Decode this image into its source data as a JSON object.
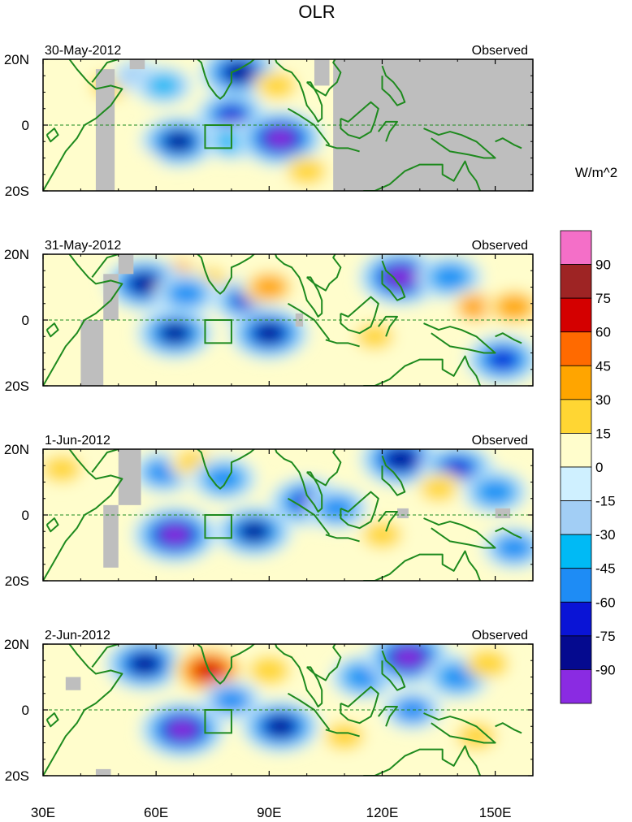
{
  "chart_data": {
    "type": "heatmap",
    "title": "OLR",
    "units_label": "W/m^2",
    "x_ticks": [
      "30E",
      "60E",
      "90E",
      "120E",
      "150E"
    ],
    "x_tick_values": [
      30,
      60,
      90,
      120,
      150
    ],
    "y_ticks": [
      "20N",
      "0",
      "20S"
    ],
    "y_tick_values": [
      20,
      0,
      -20
    ],
    "lon_range": [
      30,
      160
    ],
    "lat_range": [
      -20,
      20
    ],
    "missing_color": "#bebebe",
    "coast_color": "#1e8a1e",
    "colorbar": {
      "labels": [
        "90",
        "75",
        "60",
        "45",
        "30",
        "15",
        "0",
        "-15",
        "-30",
        "-45",
        "-60",
        "-75",
        "-90"
      ],
      "levels": [
        90,
        75,
        60,
        45,
        30,
        15,
        0,
        -15,
        -30,
        -45,
        -60,
        -75,
        -90
      ],
      "colors": [
        "#f46fc8",
        "#9e2424",
        "#d40000",
        "#ff6a00",
        "#ffa500",
        "#ffd633",
        "#fffdcc",
        "#cff0ff",
        "#a2cef5",
        "#00baf5",
        "#1e8cf5",
        "#0a14d6",
        "#050a8f",
        "#8a2be2"
      ]
    },
    "panels": [
      {
        "date": "30-May-2012",
        "tag": "Observed",
        "anomalies": [
          {
            "lon": 48,
            "lat": 12,
            "value": 25
          },
          {
            "lon": 55,
            "lat": 15,
            "value": -30
          },
          {
            "lon": 62,
            "lat": 12,
            "value": -45
          },
          {
            "lon": 82,
            "lat": 16,
            "value": -85
          },
          {
            "lon": 92,
            "lat": 12,
            "value": 25
          },
          {
            "lon": 80,
            "lat": 3,
            "value": -70
          },
          {
            "lon": 66,
            "lat": -5,
            "value": -80
          },
          {
            "lon": 80,
            "lat": -5,
            "value": -40
          },
          {
            "lon": 93,
            "lat": -4,
            "value": -95
          },
          {
            "lon": 55,
            "lat": -12,
            "value": 10
          },
          {
            "lon": 100,
            "lat": -14,
            "value": 25
          }
        ],
        "missing": [
          {
            "lon_start": 44,
            "lon_end": 49,
            "lat_start": -20,
            "lat_end": 17
          },
          {
            "lon_start": 53,
            "lon_end": 57,
            "lat_start": 17,
            "lat_end": 20
          },
          {
            "lon_start": 102,
            "lon_end": 106,
            "lat_start": 12,
            "lat_end": 20
          },
          {
            "lon_start": 107,
            "lon_end": 160,
            "lat_start": -20,
            "lat_end": 20
          }
        ]
      },
      {
        "date": "31-May-2012",
        "tag": "Observed",
        "anomalies": [
          {
            "lon": 66,
            "lat": 14,
            "value": 35
          },
          {
            "lon": 74,
            "lat": 12,
            "value": 30
          },
          {
            "lon": 57,
            "lat": 11,
            "value": -85
          },
          {
            "lon": 68,
            "lat": 8,
            "value": -55
          },
          {
            "lon": 84,
            "lat": 6,
            "value": -65
          },
          {
            "lon": 90,
            "lat": 10,
            "value": 40
          },
          {
            "lon": 65,
            "lat": -4,
            "value": -80
          },
          {
            "lon": 90,
            "lat": -4,
            "value": -85
          },
          {
            "lon": 125,
            "lat": 13,
            "value": -95
          },
          {
            "lon": 138,
            "lat": 13,
            "value": -60
          },
          {
            "lon": 145,
            "lat": 4,
            "value": 35
          },
          {
            "lon": 155,
            "lat": 4,
            "value": 45
          },
          {
            "lon": 152,
            "lat": -12,
            "value": -75
          },
          {
            "lon": 118,
            "lat": -5,
            "value": 30
          }
        ],
        "missing": [
          {
            "lon_start": 40,
            "lon_end": 46,
            "lat_start": -20,
            "lat_end": 0
          },
          {
            "lon_start": 46,
            "lon_end": 50,
            "lat_start": 0,
            "lat_end": 14
          },
          {
            "lon_start": 50,
            "lon_end": 54,
            "lat_start": 14,
            "lat_end": 20
          },
          {
            "lon_start": 97,
            "lon_end": 99,
            "lat_start": -2,
            "lat_end": 2
          }
        ]
      },
      {
        "date": "1-Jun-2012",
        "tag": "Observed",
        "anomalies": [
          {
            "lon": 35,
            "lat": 14,
            "value": 25
          },
          {
            "lon": 62,
            "lat": 13,
            "value": -55
          },
          {
            "lon": 70,
            "lat": 16,
            "value": 30
          },
          {
            "lon": 78,
            "lat": 11,
            "value": -60
          },
          {
            "lon": 65,
            "lat": -6,
            "value": -95
          },
          {
            "lon": 86,
            "lat": -5,
            "value": -80
          },
          {
            "lon": 100,
            "lat": 4,
            "value": -75
          },
          {
            "lon": 108,
            "lat": 2,
            "value": -55
          },
          {
            "lon": 125,
            "lat": 17,
            "value": -90
          },
          {
            "lon": 140,
            "lat": 14,
            "value": -75
          },
          {
            "lon": 135,
            "lat": 8,
            "value": 30
          },
          {
            "lon": 150,
            "lat": 7,
            "value": -60
          },
          {
            "lon": 120,
            "lat": -6,
            "value": 25
          },
          {
            "lon": 155,
            "lat": -10,
            "value": -55
          }
        ],
        "missing": [
          {
            "lon_start": 46,
            "lon_end": 50,
            "lat_start": -16,
            "lat_end": 3
          },
          {
            "lon_start": 50,
            "lon_end": 56,
            "lat_start": 3,
            "lat_end": 20
          },
          {
            "lon_start": 124,
            "lon_end": 127,
            "lat_start": -1,
            "lat_end": 2
          },
          {
            "lon_start": 150,
            "lon_end": 154,
            "lat_start": -1,
            "lat_end": 2
          }
        ]
      },
      {
        "date": "2-Jun-2012",
        "tag": "Observed",
        "anomalies": [
          {
            "lon": 57,
            "lat": 14,
            "value": -85
          },
          {
            "lon": 75,
            "lat": 14,
            "value": 50
          },
          {
            "lon": 74,
            "lat": 12,
            "value": 75
          },
          {
            "lon": 90,
            "lat": 12,
            "value": 20
          },
          {
            "lon": 67,
            "lat": -6,
            "value": -95
          },
          {
            "lon": 80,
            "lat": 3,
            "value": -50
          },
          {
            "lon": 93,
            "lat": -5,
            "value": -85
          },
          {
            "lon": 115,
            "lat": 10,
            "value": -60
          },
          {
            "lon": 127,
            "lat": 16,
            "value": -95
          },
          {
            "lon": 140,
            "lat": 10,
            "value": -60
          },
          {
            "lon": 148,
            "lat": 14,
            "value": 20
          },
          {
            "lon": 128,
            "lat": 0,
            "value": -50
          },
          {
            "lon": 145,
            "lat": -8,
            "value": 25
          },
          {
            "lon": 110,
            "lat": -8,
            "value": 25
          }
        ],
        "missing": [
          {
            "lon_start": 36,
            "lon_end": 40,
            "lat_start": 6,
            "lat_end": 10
          },
          {
            "lon_start": 44,
            "lon_end": 48,
            "lat_start": -20,
            "lat_end": -18
          }
        ]
      }
    ]
  }
}
